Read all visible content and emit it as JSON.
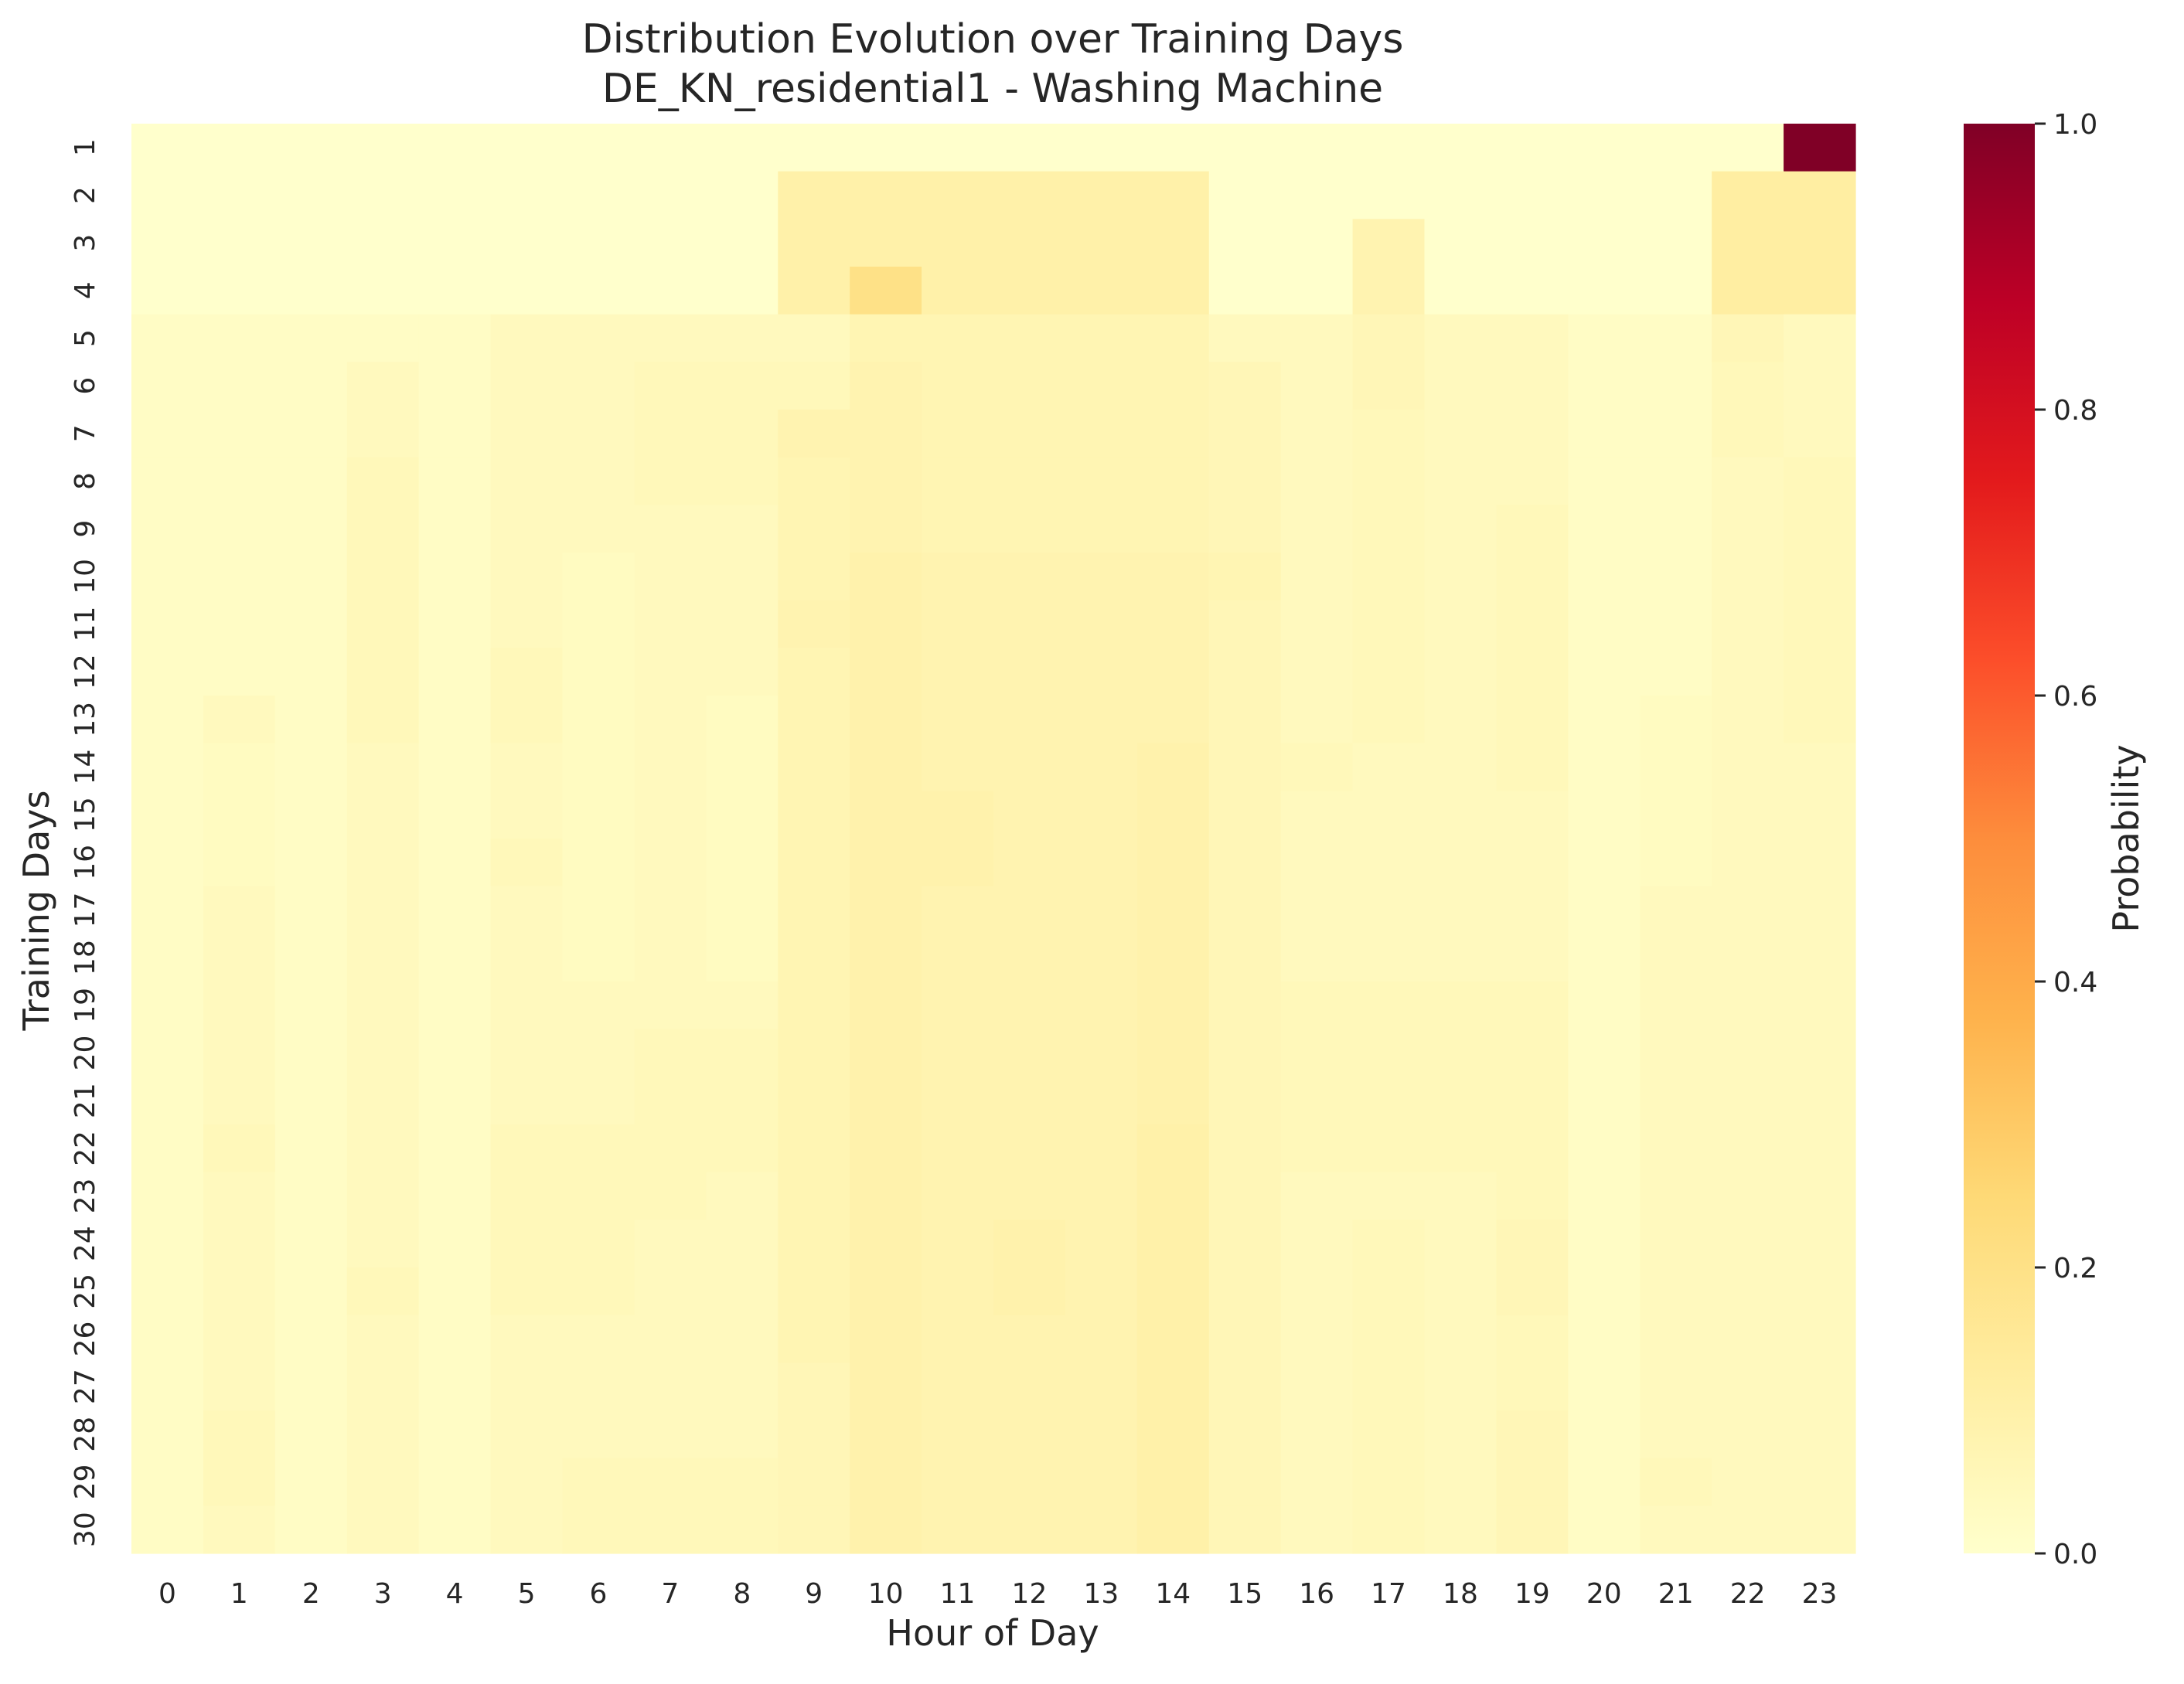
{
  "chart_data": {
    "type": "heatmap",
    "title": "Distribution Evolution over Training Days",
    "subtitle": "DE_KN_residential1 - Washing Machine",
    "xlabel": "Hour of Day",
    "ylabel": "Training Days",
    "colorbar_label": "Probability",
    "colormap": "YlOrRd",
    "vmin": 0.0,
    "vmax": 1.0,
    "colorbar_ticks": [
      "0.0",
      "0.2",
      "0.4",
      "0.6",
      "0.8",
      "1.0"
    ],
    "colorbar_tick_values": [
      0.0,
      0.2,
      0.4,
      0.6,
      0.8,
      1.0
    ],
    "x": [
      "0",
      "1",
      "2",
      "3",
      "4",
      "5",
      "6",
      "7",
      "8",
      "9",
      "10",
      "11",
      "12",
      "13",
      "14",
      "15",
      "16",
      "17",
      "18",
      "19",
      "20",
      "21",
      "22",
      "23"
    ],
    "y": [
      "1",
      "2",
      "3",
      "4",
      "5",
      "6",
      "7",
      "8",
      "9",
      "10",
      "11",
      "12",
      "13",
      "14",
      "15",
      "16",
      "17",
      "18",
      "19",
      "20",
      "21",
      "22",
      "23",
      "24",
      "25",
      "26",
      "27",
      "28",
      "29",
      "30"
    ],
    "values": [
      [
        0,
        0,
        0,
        0,
        0,
        0,
        0,
        0,
        0,
        0,
        0,
        0,
        0,
        0,
        0,
        0,
        0,
        0,
        0,
        0,
        0,
        0,
        0,
        1.0
      ],
      [
        0,
        0,
        0,
        0,
        0,
        0,
        0,
        0,
        0,
        0.1,
        0.1,
        0.1,
        0.1,
        0.1,
        0.1,
        0,
        0,
        0,
        0,
        0,
        0,
        0,
        0.12,
        0.12
      ],
      [
        0,
        0,
        0,
        0,
        0,
        0,
        0,
        0,
        0,
        0.1,
        0.1,
        0.1,
        0.1,
        0.1,
        0.1,
        0,
        0,
        0.08,
        0,
        0,
        0,
        0,
        0.12,
        0.12
      ],
      [
        0,
        0,
        0,
        0,
        0,
        0,
        0,
        0,
        0,
        0.1,
        0.2,
        0.1,
        0.1,
        0.1,
        0.1,
        0,
        0,
        0.08,
        0,
        0,
        0,
        0,
        0.12,
        0.12
      ],
      [
        0.02,
        0.02,
        0.02,
        0.02,
        0.02,
        0.04,
        0.04,
        0.04,
        0.04,
        0.04,
        0.07,
        0.07,
        0.07,
        0.07,
        0.07,
        0.04,
        0.04,
        0.06,
        0.04,
        0.04,
        0.02,
        0.02,
        0.06,
        0.04
      ],
      [
        0.02,
        0.02,
        0.02,
        0.04,
        0.02,
        0.04,
        0.04,
        0.05,
        0.05,
        0.05,
        0.08,
        0.07,
        0.07,
        0.07,
        0.07,
        0.06,
        0.04,
        0.06,
        0.04,
        0.04,
        0.02,
        0.02,
        0.05,
        0.04
      ],
      [
        0.02,
        0.02,
        0.02,
        0.04,
        0.02,
        0.04,
        0.04,
        0.05,
        0.05,
        0.08,
        0.08,
        0.07,
        0.07,
        0.07,
        0.07,
        0.06,
        0.04,
        0.05,
        0.04,
        0.04,
        0.02,
        0.02,
        0.05,
        0.04
      ],
      [
        0.02,
        0.02,
        0.02,
        0.05,
        0.02,
        0.04,
        0.04,
        0.05,
        0.05,
        0.07,
        0.08,
        0.07,
        0.07,
        0.07,
        0.07,
        0.06,
        0.04,
        0.05,
        0.04,
        0.04,
        0.02,
        0.02,
        0.04,
        0.05
      ],
      [
        0.02,
        0.02,
        0.02,
        0.05,
        0.02,
        0.04,
        0.04,
        0.04,
        0.04,
        0.07,
        0.08,
        0.07,
        0.07,
        0.07,
        0.07,
        0.06,
        0.04,
        0.05,
        0.04,
        0.05,
        0.02,
        0.02,
        0.04,
        0.05
      ],
      [
        0.02,
        0.02,
        0.02,
        0.05,
        0.02,
        0.04,
        0.03,
        0.04,
        0.04,
        0.07,
        0.09,
        0.08,
        0.08,
        0.08,
        0.08,
        0.07,
        0.04,
        0.05,
        0.04,
        0.05,
        0.02,
        0.02,
        0.04,
        0.05
      ],
      [
        0.02,
        0.02,
        0.02,
        0.05,
        0.02,
        0.04,
        0.03,
        0.04,
        0.04,
        0.08,
        0.09,
        0.08,
        0.08,
        0.08,
        0.08,
        0.06,
        0.04,
        0.05,
        0.04,
        0.05,
        0.02,
        0.02,
        0.04,
        0.05
      ],
      [
        0.02,
        0.02,
        0.02,
        0.05,
        0.02,
        0.05,
        0.03,
        0.04,
        0.04,
        0.07,
        0.09,
        0.08,
        0.08,
        0.08,
        0.08,
        0.06,
        0.04,
        0.05,
        0.04,
        0.05,
        0.02,
        0.02,
        0.04,
        0.05
      ],
      [
        0.02,
        0.04,
        0.02,
        0.05,
        0.02,
        0.05,
        0.03,
        0.04,
        0.03,
        0.07,
        0.09,
        0.08,
        0.08,
        0.08,
        0.08,
        0.06,
        0.04,
        0.05,
        0.04,
        0.05,
        0.02,
        0.03,
        0.04,
        0.05
      ],
      [
        0.02,
        0.03,
        0.02,
        0.04,
        0.02,
        0.04,
        0.03,
        0.04,
        0.03,
        0.07,
        0.09,
        0.08,
        0.08,
        0.08,
        0.09,
        0.06,
        0.05,
        0.04,
        0.04,
        0.05,
        0.02,
        0.03,
        0.04,
        0.04
      ],
      [
        0.02,
        0.03,
        0.02,
        0.04,
        0.02,
        0.04,
        0.03,
        0.04,
        0.03,
        0.07,
        0.09,
        0.09,
        0.08,
        0.08,
        0.09,
        0.06,
        0.04,
        0.04,
        0.04,
        0.04,
        0.02,
        0.03,
        0.04,
        0.04
      ],
      [
        0.02,
        0.03,
        0.02,
        0.04,
        0.02,
        0.05,
        0.03,
        0.04,
        0.03,
        0.07,
        0.09,
        0.09,
        0.08,
        0.08,
        0.09,
        0.06,
        0.04,
        0.04,
        0.04,
        0.04,
        0.02,
        0.03,
        0.04,
        0.04
      ],
      [
        0.02,
        0.04,
        0.02,
        0.04,
        0.02,
        0.04,
        0.03,
        0.04,
        0.03,
        0.07,
        0.09,
        0.08,
        0.08,
        0.08,
        0.09,
        0.06,
        0.04,
        0.04,
        0.04,
        0.04,
        0.02,
        0.04,
        0.04,
        0.04
      ],
      [
        0.02,
        0.04,
        0.02,
        0.04,
        0.02,
        0.04,
        0.03,
        0.04,
        0.03,
        0.07,
        0.09,
        0.08,
        0.08,
        0.08,
        0.09,
        0.06,
        0.04,
        0.04,
        0.04,
        0.04,
        0.02,
        0.04,
        0.04,
        0.04
      ],
      [
        0.02,
        0.04,
        0.02,
        0.04,
        0.02,
        0.04,
        0.04,
        0.04,
        0.04,
        0.07,
        0.09,
        0.08,
        0.08,
        0.08,
        0.09,
        0.06,
        0.05,
        0.05,
        0.05,
        0.05,
        0.02,
        0.04,
        0.04,
        0.04
      ],
      [
        0.02,
        0.04,
        0.02,
        0.04,
        0.02,
        0.04,
        0.04,
        0.05,
        0.05,
        0.07,
        0.09,
        0.08,
        0.08,
        0.08,
        0.09,
        0.06,
        0.05,
        0.05,
        0.05,
        0.05,
        0.02,
        0.04,
        0.04,
        0.04
      ],
      [
        0.02,
        0.04,
        0.02,
        0.04,
        0.02,
        0.04,
        0.04,
        0.05,
        0.05,
        0.07,
        0.09,
        0.08,
        0.08,
        0.08,
        0.09,
        0.06,
        0.05,
        0.05,
        0.05,
        0.05,
        0.02,
        0.04,
        0.04,
        0.04
      ],
      [
        0.02,
        0.05,
        0.02,
        0.04,
        0.02,
        0.05,
        0.05,
        0.05,
        0.05,
        0.07,
        0.09,
        0.08,
        0.08,
        0.08,
        0.1,
        0.06,
        0.05,
        0.05,
        0.05,
        0.05,
        0.02,
        0.04,
        0.04,
        0.04
      ],
      [
        0.02,
        0.04,
        0.02,
        0.04,
        0.02,
        0.05,
        0.05,
        0.05,
        0.04,
        0.07,
        0.09,
        0.08,
        0.08,
        0.08,
        0.1,
        0.06,
        0.04,
        0.04,
        0.04,
        0.05,
        0.02,
        0.04,
        0.04,
        0.04
      ],
      [
        0.02,
        0.04,
        0.02,
        0.04,
        0.02,
        0.05,
        0.05,
        0.04,
        0.04,
        0.07,
        0.09,
        0.08,
        0.09,
        0.08,
        0.1,
        0.06,
        0.04,
        0.05,
        0.04,
        0.06,
        0.02,
        0.04,
        0.04,
        0.04
      ],
      [
        0.02,
        0.04,
        0.02,
        0.05,
        0.02,
        0.05,
        0.05,
        0.04,
        0.04,
        0.07,
        0.09,
        0.08,
        0.09,
        0.08,
        0.1,
        0.06,
        0.04,
        0.05,
        0.04,
        0.06,
        0.02,
        0.04,
        0.04,
        0.04
      ],
      [
        0.02,
        0.04,
        0.02,
        0.04,
        0.02,
        0.04,
        0.04,
        0.04,
        0.04,
        0.07,
        0.09,
        0.08,
        0.08,
        0.08,
        0.1,
        0.06,
        0.04,
        0.05,
        0.04,
        0.05,
        0.02,
        0.04,
        0.04,
        0.04
      ],
      [
        0.02,
        0.04,
        0.02,
        0.04,
        0.02,
        0.04,
        0.04,
        0.04,
        0.04,
        0.06,
        0.09,
        0.08,
        0.08,
        0.08,
        0.1,
        0.06,
        0.04,
        0.05,
        0.04,
        0.05,
        0.02,
        0.04,
        0.04,
        0.04
      ],
      [
        0.02,
        0.05,
        0.02,
        0.04,
        0.02,
        0.04,
        0.04,
        0.04,
        0.04,
        0.06,
        0.09,
        0.08,
        0.08,
        0.08,
        0.1,
        0.06,
        0.04,
        0.05,
        0.04,
        0.06,
        0.02,
        0.04,
        0.04,
        0.04
      ],
      [
        0.02,
        0.05,
        0.02,
        0.04,
        0.02,
        0.04,
        0.05,
        0.05,
        0.05,
        0.06,
        0.09,
        0.08,
        0.08,
        0.08,
        0.1,
        0.06,
        0.04,
        0.05,
        0.04,
        0.06,
        0.02,
        0.05,
        0.04,
        0.04
      ],
      [
        0.02,
        0.04,
        0.02,
        0.04,
        0.02,
        0.04,
        0.05,
        0.05,
        0.05,
        0.06,
        0.09,
        0.08,
        0.08,
        0.08,
        0.1,
        0.06,
        0.04,
        0.05,
        0.04,
        0.06,
        0.02,
        0.04,
        0.04,
        0.04
      ]
    ]
  }
}
